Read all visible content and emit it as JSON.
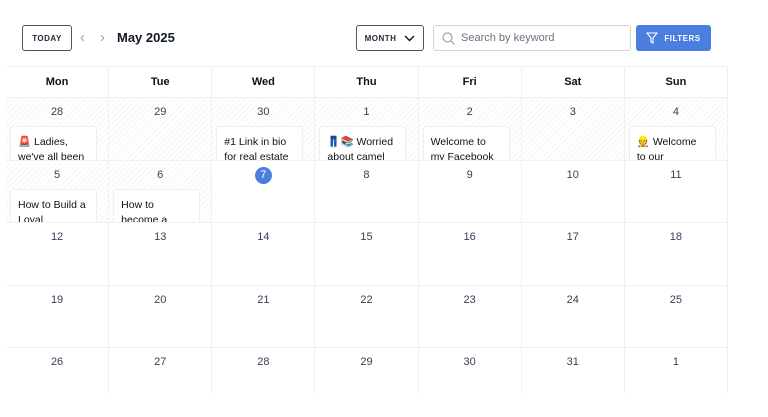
{
  "toolbar": {
    "today_label": "TODAY",
    "prev_icon": "chevron-left",
    "next_icon": "chevron-right",
    "month_title": "May 2025",
    "view_label": "MONTH",
    "search_placeholder": "Search by keyword",
    "filters_label": "FILTERS",
    "accent": "#4a7fe0"
  },
  "weekdays": [
    "Mon",
    "Tue",
    "Wed",
    "Thu",
    "Fri",
    "Sat",
    "Sun"
  ],
  "weeks": [
    [
      {
        "day": "28",
        "past": true,
        "post": "🚨 Ladies, we've all been"
      },
      {
        "day": "29",
        "past": true
      },
      {
        "day": "30",
        "past": true,
        "post": "#1 Link in bio for real estate"
      },
      {
        "day": "1",
        "past": true,
        "post": "👖📚 Worried about camel"
      },
      {
        "day": "2",
        "past": true,
        "post": "Welcome to my Facebook"
      },
      {
        "day": "3",
        "past": true
      },
      {
        "day": "4",
        "past": true,
        "post": "👷 Welcome to our Developer"
      }
    ],
    [
      {
        "day": "5",
        "past": true,
        "post": "How to Build a Loyal Audience"
      },
      {
        "day": "6",
        "past": true,
        "post": "How to become a"
      },
      {
        "day": "7",
        "today": true
      },
      {
        "day": "8"
      },
      {
        "day": "9"
      },
      {
        "day": "10"
      },
      {
        "day": "11"
      }
    ],
    [
      {
        "day": "12"
      },
      {
        "day": "13"
      },
      {
        "day": "14"
      },
      {
        "day": "15"
      },
      {
        "day": "16"
      },
      {
        "day": "17"
      },
      {
        "day": "18"
      }
    ],
    [
      {
        "day": "19"
      },
      {
        "day": "20"
      },
      {
        "day": "21"
      },
      {
        "day": "22"
      },
      {
        "day": "23"
      },
      {
        "day": "24"
      },
      {
        "day": "25"
      }
    ],
    [
      {
        "day": "26"
      },
      {
        "day": "27"
      },
      {
        "day": "28"
      },
      {
        "day": "29"
      },
      {
        "day": "30"
      },
      {
        "day": "31"
      },
      {
        "day": "1"
      }
    ]
  ]
}
